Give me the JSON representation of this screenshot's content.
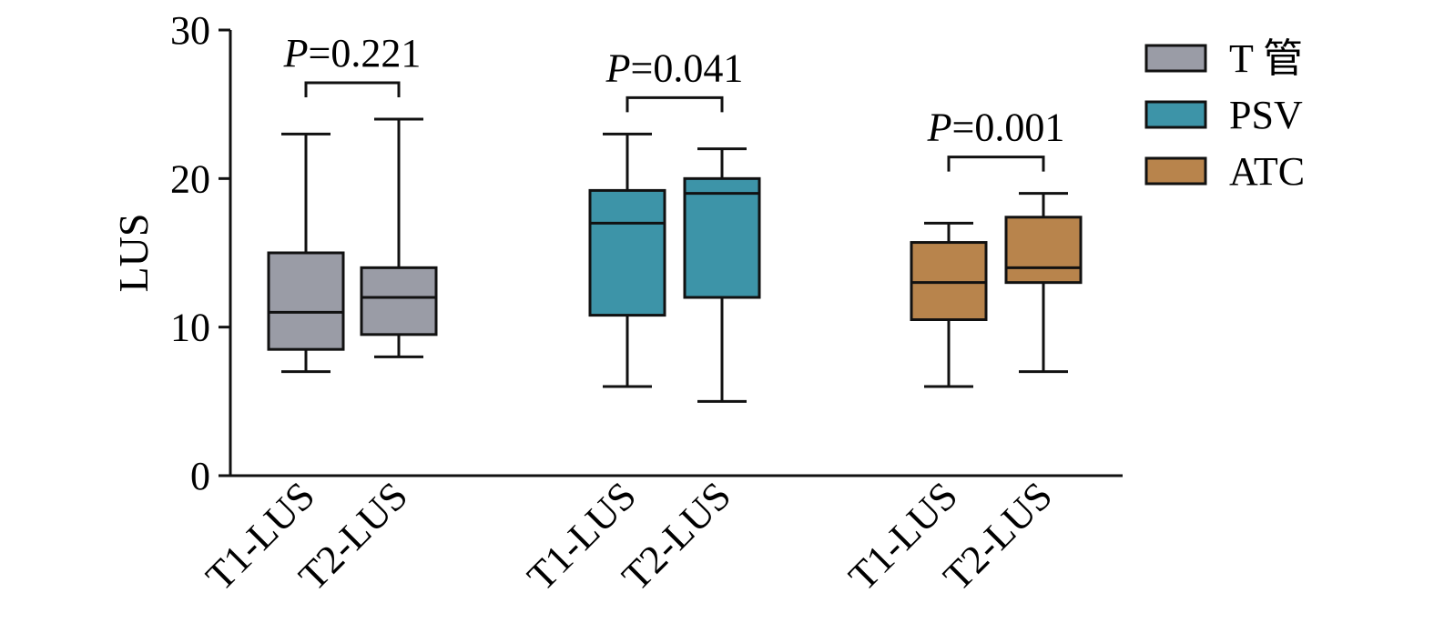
{
  "chart_data": {
    "type": "box",
    "ylabel": "LUS",
    "ylim": [
      0,
      30
    ],
    "yticks": [
      0,
      10,
      20,
      30
    ],
    "legend_position": "top-right",
    "groups": [
      {
        "name": "T 管",
        "color": "#9a9ca6",
        "pvalue": "=0.221",
        "boxes": [
          {
            "category": "T1-LUS",
            "min": 7,
            "q1": 8.5,
            "median": 11,
            "q3": 15,
            "max": 23
          },
          {
            "category": "T2-LUS",
            "min": 8,
            "q1": 9.5,
            "median": 12,
            "q3": 14,
            "max": 24
          }
        ]
      },
      {
        "name": "PSV",
        "color": "#3d94a8",
        "pvalue": "=0.041",
        "boxes": [
          {
            "category": "T1-LUS",
            "min": 6,
            "q1": 10.8,
            "median": 17,
            "q3": 19.2,
            "max": 23
          },
          {
            "category": "T2-LUS",
            "min": 5,
            "q1": 12,
            "median": 19,
            "q3": 20,
            "max": 22
          }
        ]
      },
      {
        "name": "ATC",
        "color": "#b8844c",
        "pvalue": "=0.001",
        "boxes": [
          {
            "category": "T1-LUS",
            "min": 6,
            "q1": 10.5,
            "median": 13,
            "q3": 15.7,
            "max": 17
          },
          {
            "category": "T2-LUS",
            "min": 7,
            "q1": 13,
            "median": 14,
            "q3": 17.4,
            "max": 19
          }
        ]
      }
    ],
    "p_label_prefix": "P"
  }
}
